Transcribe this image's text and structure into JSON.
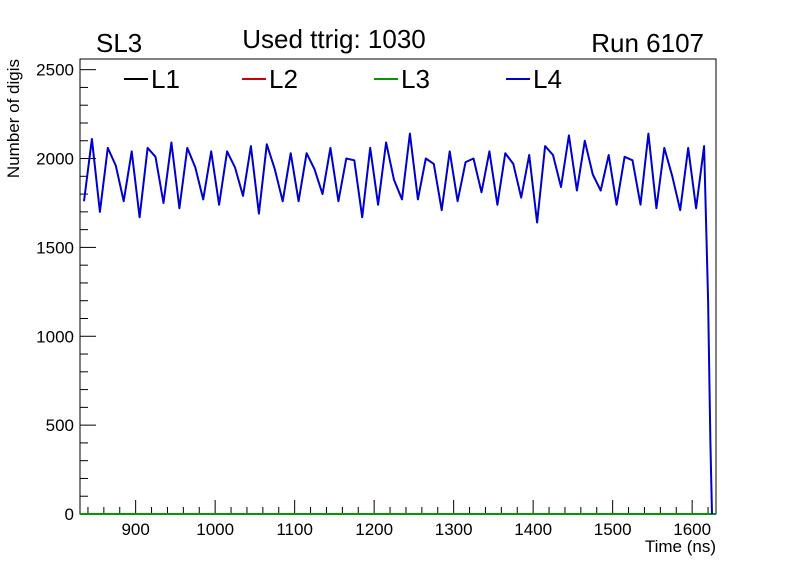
{
  "chart_data": {
    "type": "line",
    "title": "Used ttrig: 1030",
    "left_label": "SL3",
    "right_label": "Run 6107",
    "xlabel": "Time (ns)",
    "ylabel": "Number of digis",
    "xlim": [
      830,
      1630
    ],
    "ylim": [
      0,
      2560
    ],
    "x_ticks": [
      900,
      1000,
      1100,
      1200,
      1300,
      1400,
      1500,
      1600
    ],
    "y_ticks": [
      0,
      500,
      1000,
      1500,
      2000,
      2500
    ],
    "legend_position": "top",
    "grid": false,
    "series": [
      {
        "name": "L1",
        "color": "#000000",
        "x": [
          830,
          1630
        ],
        "values": [
          0,
          0
        ]
      },
      {
        "name": "L2",
        "color": "#cc0000",
        "x": [
          830,
          1630
        ],
        "values": [
          0,
          0
        ]
      },
      {
        "name": "L3",
        "color": "#009900",
        "x": [
          830,
          1630
        ],
        "values": [
          0,
          0
        ]
      },
      {
        "name": "L4",
        "color": "#0000cc",
        "x": [
          835,
          845,
          855,
          865,
          875,
          885,
          895,
          905,
          915,
          925,
          935,
          945,
          955,
          965,
          975,
          985,
          995,
          1005,
          1015,
          1025,
          1035,
          1045,
          1055,
          1065,
          1075,
          1085,
          1095,
          1105,
          1115,
          1125,
          1135,
          1145,
          1155,
          1165,
          1175,
          1185,
          1195,
          1205,
          1215,
          1225,
          1235,
          1245,
          1255,
          1265,
          1275,
          1285,
          1295,
          1305,
          1315,
          1325,
          1335,
          1345,
          1355,
          1365,
          1375,
          1385,
          1395,
          1405,
          1415,
          1425,
          1435,
          1445,
          1455,
          1465,
          1475,
          1485,
          1495,
          1505,
          1515,
          1525,
          1535,
          1545,
          1555,
          1565,
          1575,
          1585,
          1595,
          1605,
          1615,
          1620,
          1623,
          1625
        ],
        "values": [
          1760,
          2110,
          1700,
          2060,
          1960,
          1760,
          2040,
          1670,
          2060,
          2010,
          1750,
          2090,
          1720,
          2060,
          1950,
          1770,
          2040,
          1740,
          2040,
          1950,
          1790,
          2070,
          1690,
          2080,
          1940,
          1760,
          2030,
          1760,
          2030,
          1940,
          1800,
          2060,
          1760,
          2000,
          1990,
          1670,
          2060,
          1740,
          2090,
          1880,
          1770,
          2140,
          1770,
          2000,
          1970,
          1710,
          2040,
          1760,
          1980,
          2000,
          1810,
          2040,
          1740,
          2030,
          1970,
          1780,
          2020,
          1640,
          2070,
          2020,
          1840,
          2130,
          1820,
          2100,
          1910,
          1820,
          2020,
          1740,
          2010,
          1990,
          1740,
          2140,
          1720,
          2060,
          1900,
          1710,
          2060,
          1720,
          2070,
          1200,
          400,
          0
        ]
      }
    ]
  }
}
